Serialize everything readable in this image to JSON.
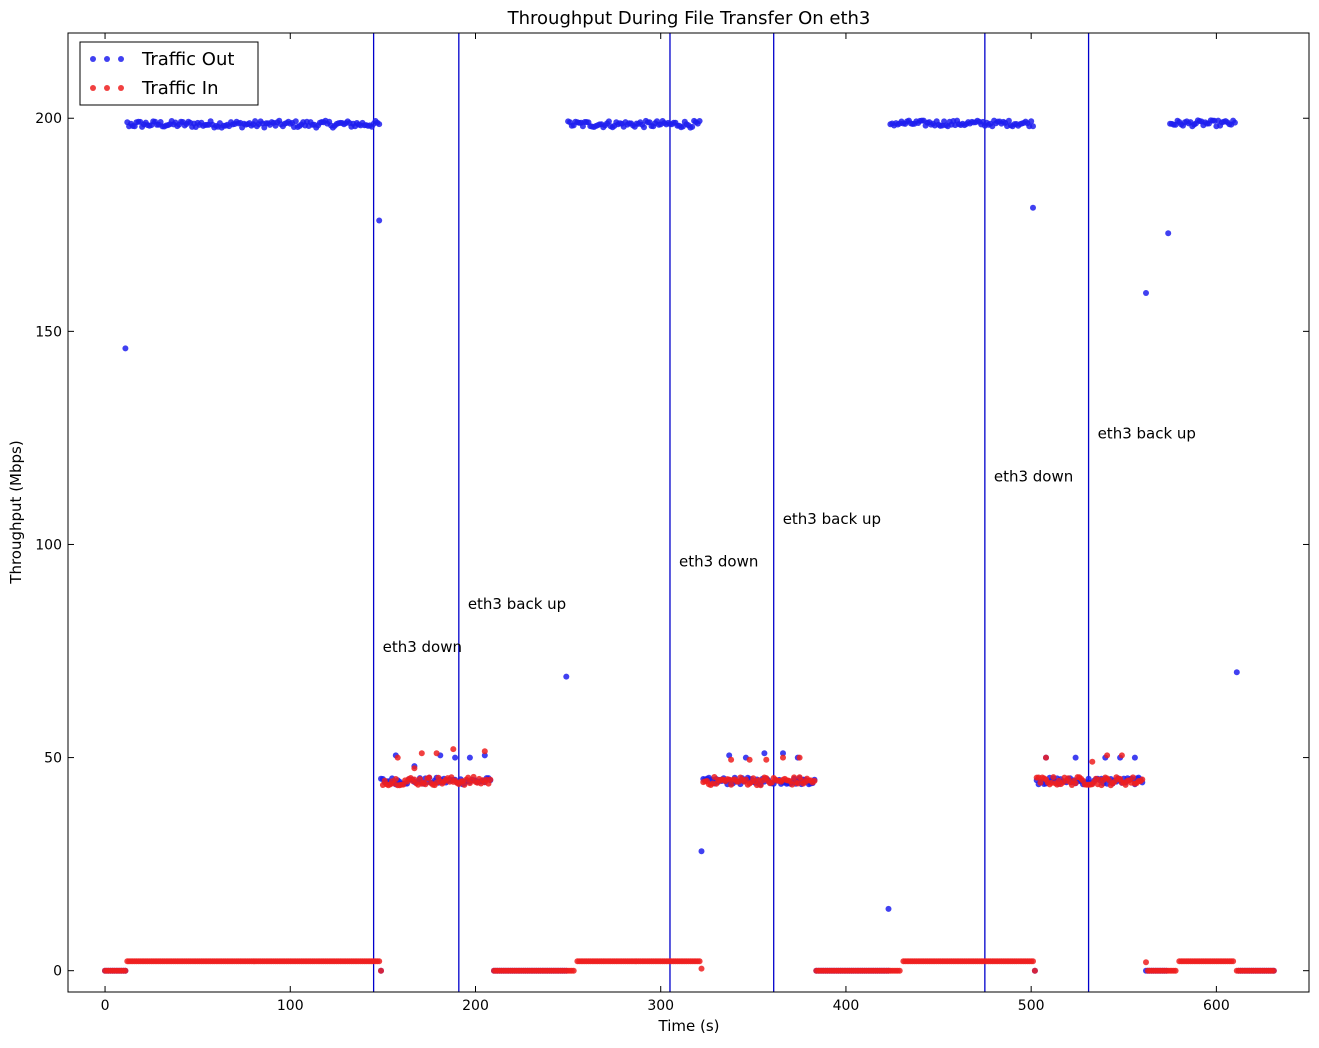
{
  "chart_data": {
    "type": "scatter",
    "title": "Throughput During File Transfer On eth3",
    "xlabel": "Time (s)",
    "ylabel": "Throughput (Mbps)",
    "xlim": [
      -20,
      650
    ],
    "ylim": [
      -5,
      220
    ],
    "xticks": [
      0,
      100,
      200,
      300,
      400,
      500,
      600
    ],
    "yticks": [
      0,
      50,
      100,
      150,
      200
    ],
    "grid": false,
    "legend_position": "top-left",
    "colors": {
      "out": "#1f1fee",
      "in": "#ee1f1f",
      "vline": "#0000cc"
    },
    "legend": [
      {
        "label": "Traffic Out",
        "color": "#1f1fee"
      },
      {
        "label": "Traffic In",
        "color": "#ee1f1f"
      }
    ],
    "events": [
      {
        "x": 145,
        "label": "eth3 down",
        "label_y": 76
      },
      {
        "x": 191,
        "label": "eth3 back up",
        "label_y": 86
      },
      {
        "x": 305,
        "label": "eth3 down",
        "label_y": 96
      },
      {
        "x": 361,
        "label": "eth3 back up",
        "label_y": 106
      },
      {
        "x": 475,
        "label": "eth3 down",
        "label_y": 116
      },
      {
        "x": 531,
        "label": "eth3 back up",
        "label_y": 126
      }
    ],
    "series": [
      {
        "name": "Traffic Out",
        "segments": [
          {
            "x_start": 0,
            "x_end": 11,
            "y": 0,
            "jitter": 0
          },
          {
            "x_start": 12,
            "x_end": 148,
            "y": 198.6,
            "jitter": 0.8
          },
          {
            "x_start": 149,
            "x_end": 208,
            "y": 44.5,
            "jitter": 0.8
          },
          {
            "x_start": 210,
            "x_end": 249,
            "y": 0,
            "jitter": 0
          },
          {
            "x_start": 250,
            "x_end": 321,
            "y": 198.6,
            "jitter": 0.8
          },
          {
            "x_start": 323,
            "x_end": 383,
            "y": 44.5,
            "jitter": 0.8
          },
          {
            "x_start": 384,
            "x_end": 423,
            "y": 0,
            "jitter": 0
          },
          {
            "x_start": 424,
            "x_end": 501,
            "y": 198.8,
            "jitter": 0.7
          },
          {
            "x_start": 503,
            "x_end": 560,
            "y": 44.5,
            "jitter": 0.8
          },
          {
            "x_start": 562,
            "x_end": 573,
            "y": 0,
            "jitter": 0
          },
          {
            "x_start": 575,
            "x_end": 610,
            "y": 198.8,
            "jitter": 0.7
          },
          {
            "x_start": 612,
            "x_end": 631,
            "y": 0,
            "jitter": 0
          }
        ],
        "points": [
          [
            11,
            146
          ],
          [
            148,
            176
          ],
          [
            149,
            0
          ],
          [
            249,
            69
          ],
          [
            322,
            28
          ],
          [
            423,
            14.5
          ],
          [
            501,
            179
          ],
          [
            502,
            0
          ],
          [
            562,
            159
          ],
          [
            574,
            173
          ],
          [
            611,
            70
          ],
          [
            157,
            50.5
          ],
          [
            167,
            48
          ],
          [
            181,
            50.5
          ],
          [
            189,
            50
          ],
          [
            197,
            50
          ],
          [
            205,
            50.5
          ],
          [
            337,
            50.5
          ],
          [
            346,
            50
          ],
          [
            356,
            51
          ],
          [
            366,
            51
          ],
          [
            374,
            50
          ],
          [
            508,
            50
          ],
          [
            524,
            50
          ],
          [
            540,
            50
          ],
          [
            548,
            50
          ],
          [
            556,
            50
          ]
        ]
      },
      {
        "name": "Traffic In",
        "segments": [
          {
            "x_start": 0,
            "x_end": 11,
            "y": 0,
            "jitter": 0
          },
          {
            "x_start": 12,
            "x_end": 148,
            "y": 2.2,
            "jitter": 0
          },
          {
            "x_start": 150,
            "x_end": 208,
            "y": 44.5,
            "jitter": 1.0
          },
          {
            "x_start": 210,
            "x_end": 253,
            "y": 0,
            "jitter": 0
          },
          {
            "x_start": 255,
            "x_end": 321,
            "y": 2.2,
            "jitter": 0
          },
          {
            "x_start": 323,
            "x_end": 383,
            "y": 44.5,
            "jitter": 1.0
          },
          {
            "x_start": 384,
            "x_end": 429,
            "y": 0,
            "jitter": 0
          },
          {
            "x_start": 431,
            "x_end": 501,
            "y": 2.2,
            "jitter": 0
          },
          {
            "x_start": 503,
            "x_end": 560,
            "y": 44.5,
            "jitter": 1.0
          },
          {
            "x_start": 563,
            "x_end": 578,
            "y": 0,
            "jitter": 0
          },
          {
            "x_start": 580,
            "x_end": 609,
            "y": 2.2,
            "jitter": 0
          },
          {
            "x_start": 611,
            "x_end": 631,
            "y": 0,
            "jitter": 0
          }
        ],
        "points": [
          [
            149,
            0
          ],
          [
            322,
            0.5
          ],
          [
            502,
            0
          ],
          [
            562,
            2
          ],
          [
            158,
            50
          ],
          [
            167,
            47.5
          ],
          [
            171,
            51
          ],
          [
            179,
            51
          ],
          [
            188,
            52
          ],
          [
            205,
            51.5
          ],
          [
            338,
            49.5
          ],
          [
            348,
            49.5
          ],
          [
            357,
            49.5
          ],
          [
            366,
            50
          ],
          [
            375,
            50
          ],
          [
            508,
            50
          ],
          [
            533,
            49
          ],
          [
            541,
            50.5
          ],
          [
            549,
            50.5
          ]
        ]
      }
    ]
  }
}
